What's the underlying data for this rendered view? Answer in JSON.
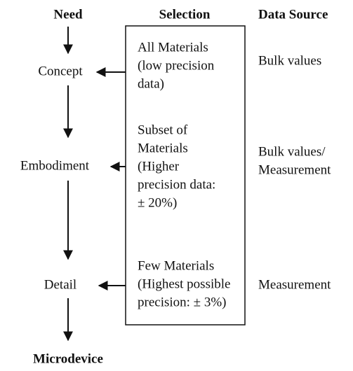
{
  "headers": {
    "need": "Need",
    "selection": "Selection",
    "data_source": "Data Source"
  },
  "stages": [
    {
      "label": "Concept",
      "selection": [
        "All Materials",
        "(low precision",
        "data)"
      ],
      "data_source": [
        "Bulk values"
      ]
    },
    {
      "label": "Embodiment",
      "selection": [
        "Subset of",
        "Materials",
        "(Higher",
        "precision data:",
        "± 20%)"
      ],
      "data_source": [
        "Bulk values/",
        "Measurement"
      ]
    },
    {
      "label": "Detail",
      "selection": [
        "Few Materials",
        "(Highest possible",
        "precision: ± 3%)"
      ],
      "data_source": [
        "Measurement"
      ]
    }
  ],
  "output": "Microdevice"
}
